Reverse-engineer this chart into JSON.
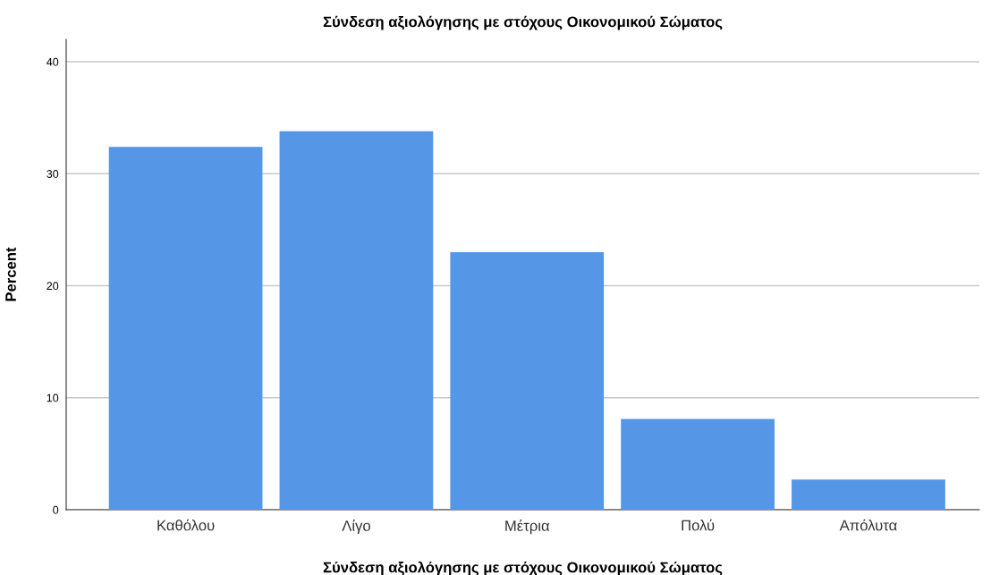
{
  "chart_data": {
    "type": "bar",
    "title": "Σύνδεση αξιολόγησης με στόχους Οικονομικού Σώματος",
    "xlabel": "Σύνδεση αξιολόγησης με στόχους Οικονομικού Σώματος",
    "ylabel": "Percent",
    "categories": [
      "Καθόλου",
      "Λίγο",
      "Μέτρια",
      "Πολύ",
      "Απόλυτα"
    ],
    "values": [
      32.4,
      33.8,
      23.0,
      8.1,
      2.7
    ],
    "color": "#5596e6",
    "ylim": [
      0,
      42
    ],
    "yticks": [
      0,
      10,
      20,
      30,
      40
    ],
    "grid": "y"
  }
}
